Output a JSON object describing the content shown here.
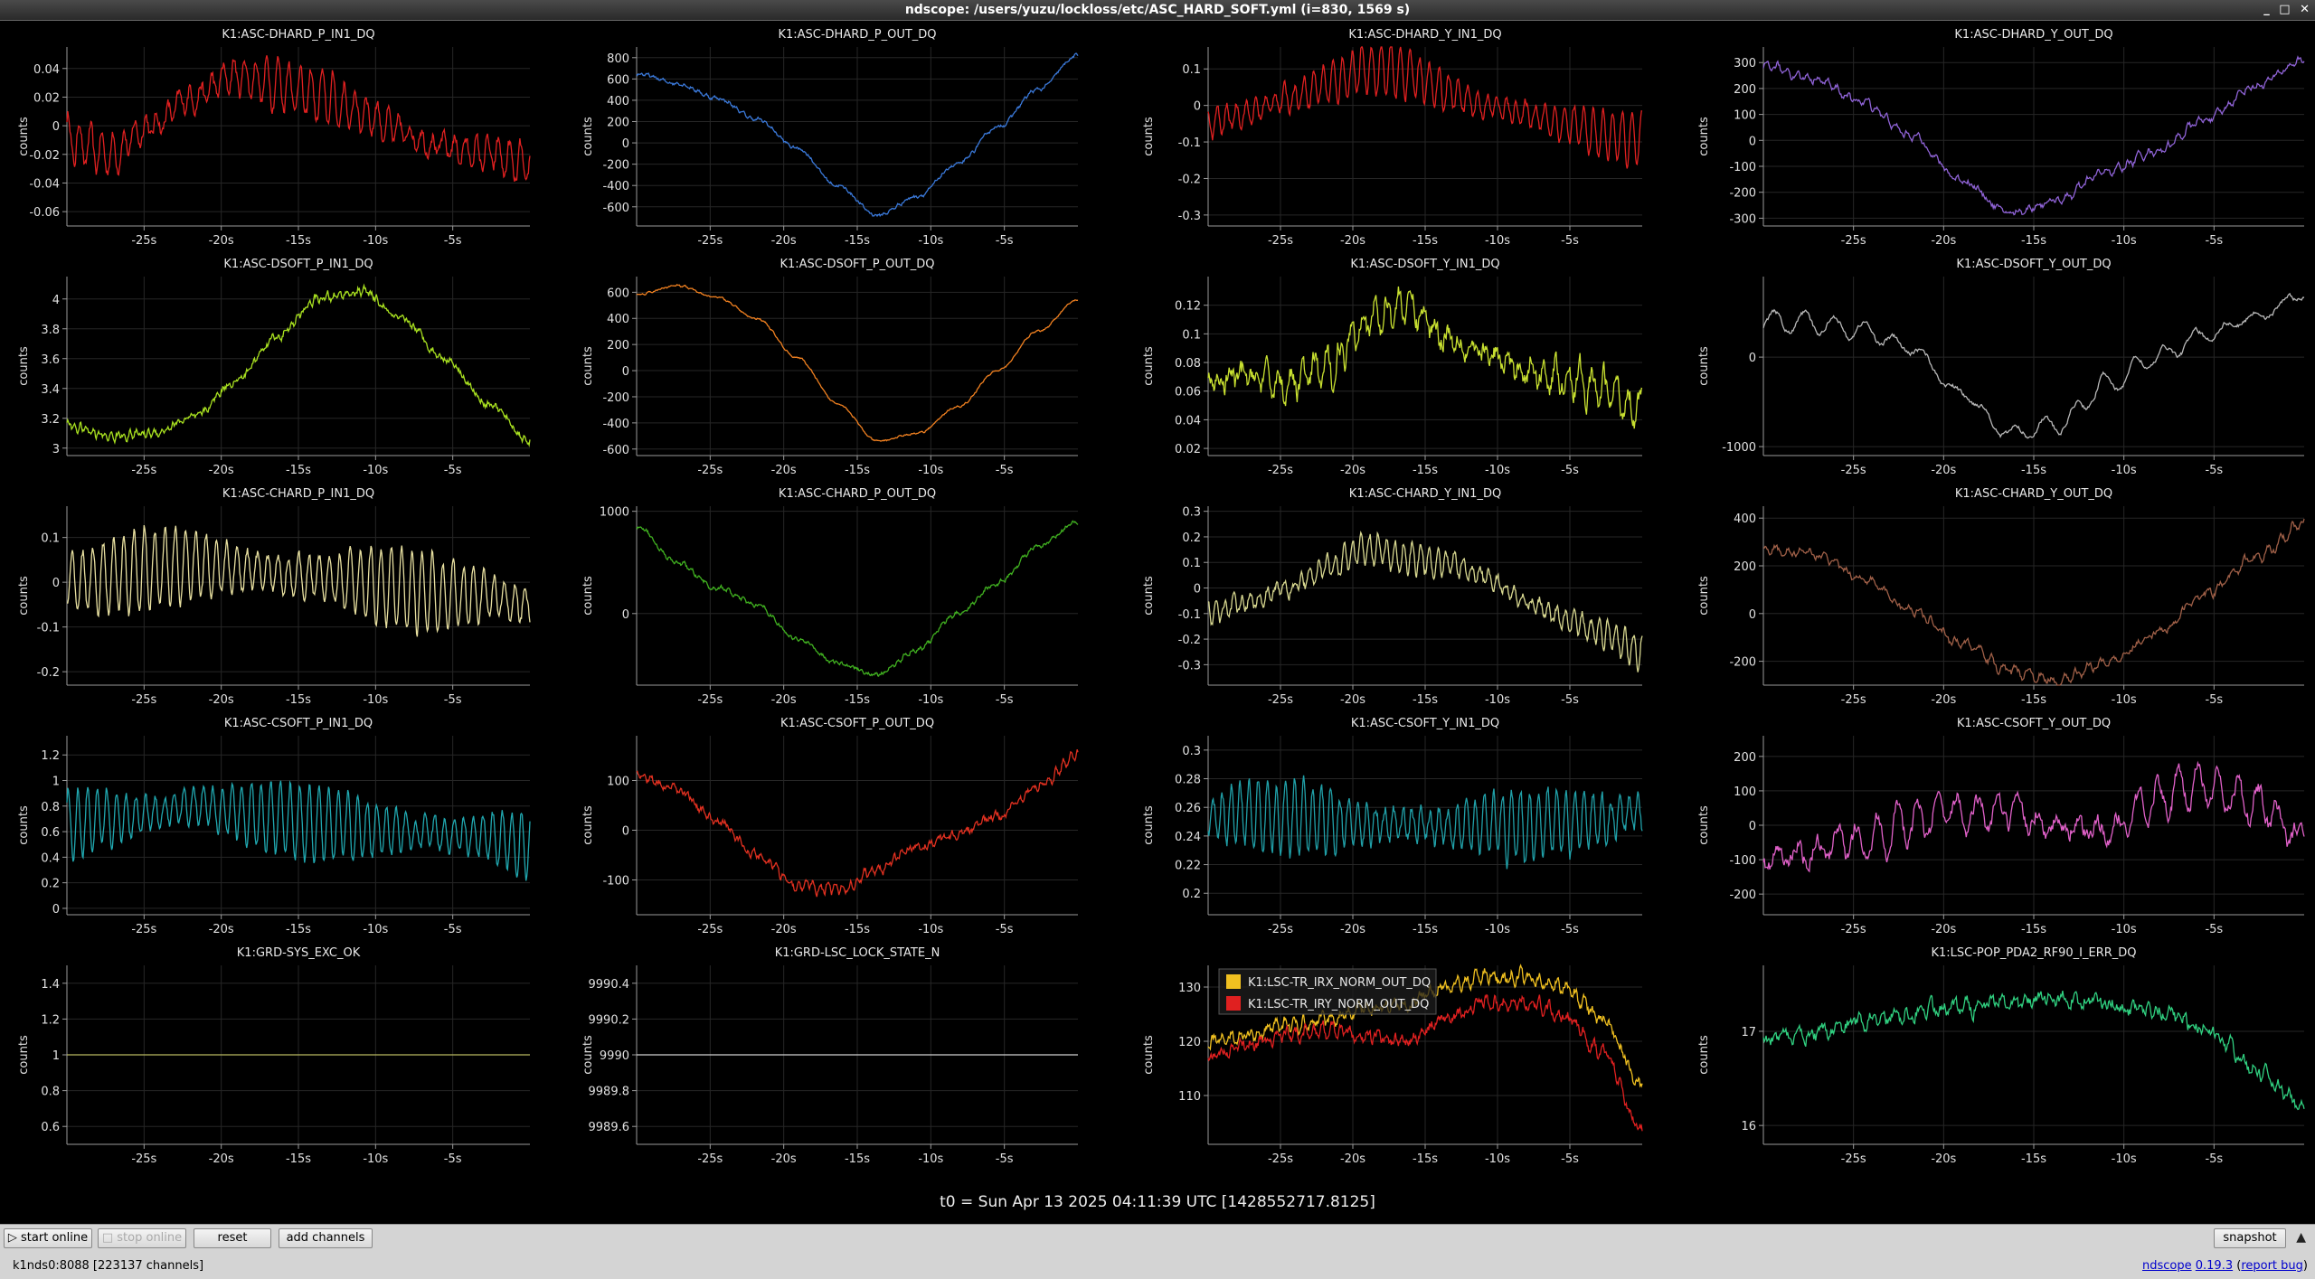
{
  "window": {
    "title": "ndscope: /users/yuzu/lockloss/etc/ASC_HARD_SOFT.yml (i=830, 1569 s)",
    "buttons": [
      "_",
      "□",
      "✕"
    ]
  },
  "x_ticks": [
    "-25s",
    "-20s",
    "-15s",
    "-10s",
    "-5s"
  ],
  "x_tick_values": [
    -25,
    -20,
    -15,
    -10,
    -5
  ],
  "x_range": [
    -30,
    0
  ],
  "colors": {
    "red": "#e02020",
    "blue": "#3a78d8",
    "purple": "#8f63d6",
    "lime": "#a8e020",
    "orange": "#f08020",
    "yellow_lime": "#c8e030",
    "gray": "#b8b8b8",
    "khaki": "#e8e0a0",
    "green": "#40b020",
    "khaki2": "#d8d890",
    "brown": "#a06048",
    "cyan": "#20a8b0",
    "red2": "#e03020",
    "teal": "#20a0a8",
    "pink": "#e060c8",
    "olive": "#b8b860",
    "white": "#d0d0d0",
    "yellow": "#f0c020",
    "mint": "#30d080"
  },
  "plots": [
    {
      "title": "K1:ASC-DHARD_P_IN1_DQ",
      "ylabel": "counts",
      "yticks": [
        "0.04",
        "0.02",
        "0",
        "-0.02",
        "-0.04",
        "-0.06"
      ],
      "ytick_values": [
        0.04,
        0.02,
        0,
        -0.02,
        -0.04,
        -0.06
      ],
      "ylim": [
        -0.07,
        0.055
      ],
      "series": [
        {
          "color": "red",
          "trend": [
            -0.01,
            -0.02,
            0.0,
            0.02,
            0.035,
            0.03,
            0.02,
            0.01,
            -0.005,
            -0.015,
            -0.02,
            -0.03
          ],
          "osc": 0.018,
          "freq": 1.4,
          "noise": 0.004
        }
      ]
    },
    {
      "title": "K1:ASC-DHARD_P_OUT_DQ",
      "ylabel": "counts",
      "yticks": [
        "800",
        "600",
        "400",
        "200",
        "0",
        "-200",
        "-400",
        "-600"
      ],
      "ytick_values": [
        800,
        600,
        400,
        200,
        0,
        -200,
        -400,
        -600
      ],
      "ylim": [
        -780,
        900
      ],
      "series": [
        {
          "color": "blue",
          "trend": [
            650,
            560,
            420,
            220,
            -50,
            -400,
            -680,
            -500,
            -200,
            150,
            500,
            820
          ],
          "osc": 10,
          "freq": 2,
          "noise": 12
        }
      ]
    },
    {
      "title": "K1:ASC-DHARD_Y_IN1_DQ",
      "ylabel": "counts",
      "yticks": [
        "0.1",
        "0",
        "-0.1",
        "-0.2",
        "-0.3"
      ],
      "ytick_values": [
        0.1,
        0,
        -0.1,
        -0.2,
        -0.3
      ],
      "ylim": [
        -0.33,
        0.16
      ],
      "series": [
        {
          "color": "red",
          "trend": [
            -0.05,
            -0.02,
            0.02,
            0.06,
            0.1,
            0.09,
            0.04,
            0.0,
            -0.02,
            -0.05,
            -0.08,
            -0.1
          ],
          "osc": 0.07,
          "freq": 1.5,
          "noise": 0.01
        }
      ]
    },
    {
      "title": "K1:ASC-DHARD_Y_OUT_DQ",
      "ylabel": "counts",
      "yticks": [
        "300",
        "200",
        "100",
        "0",
        "-100",
        "-200",
        "-300"
      ],
      "ytick_values": [
        300,
        200,
        100,
        0,
        -100,
        -200,
        -300
      ],
      "ylim": [
        -330,
        360
      ],
      "series": [
        {
          "color": "purple",
          "trend": [
            290,
            240,
            150,
            20,
            -150,
            -280,
            -230,
            -120,
            -40,
            80,
            210,
            310
          ],
          "osc": 15,
          "freq": 1.8,
          "noise": 10
        }
      ]
    },
    {
      "title": "K1:ASC-DSOFT_P_IN1_DQ",
      "ylabel": "counts",
      "yticks": [
        "4",
        "3.8",
        "3.6",
        "3.4",
        "3.2",
        "3"
      ],
      "ytick_values": [
        4,
        3.8,
        3.6,
        3.4,
        3.2,
        3
      ],
      "ylim": [
        2.95,
        4.15
      ],
      "series": [
        {
          "color": "lime",
          "trend": [
            3.15,
            3.08,
            3.1,
            3.2,
            3.45,
            3.75,
            4.0,
            4.05,
            3.85,
            3.6,
            3.3,
            3.05
          ],
          "osc": 0.02,
          "freq": 2.5,
          "noise": 0.02
        }
      ]
    },
    {
      "title": "K1:ASC-DSOFT_P_OUT_DQ",
      "ylabel": "counts",
      "yticks": [
        "600",
        "400",
        "200",
        "0",
        "-200",
        "-400",
        "-600"
      ],
      "ytick_values": [
        600,
        400,
        200,
        0,
        -200,
        -400,
        -600
      ],
      "ylim": [
        -650,
        720
      ],
      "series": [
        {
          "color": "orange",
          "trend": [
            580,
            650,
            560,
            400,
            100,
            -250,
            -540,
            -480,
            -280,
            0,
            300,
            540
          ],
          "osc": 5,
          "freq": 2,
          "noise": 5
        }
      ]
    },
    {
      "title": "K1:ASC-DSOFT_Y_IN1_DQ",
      "ylabel": "counts",
      "yticks": [
        "0.12",
        "0.1",
        "0.08",
        "0.06",
        "0.04",
        "0.02"
      ],
      "ytick_values": [
        0.12,
        0.1,
        0.08,
        0.06,
        0.04,
        0.02
      ],
      "ylim": [
        0.015,
        0.14
      ],
      "series": [
        {
          "color": "yellow_lime",
          "trend": [
            0.065,
            0.07,
            0.065,
            0.075,
            0.11,
            0.12,
            0.1,
            0.085,
            0.075,
            0.07,
            0.06,
            0.05
          ],
          "osc": 0.012,
          "freq": 1.2,
          "noise": 0.006
        }
      ]
    },
    {
      "title": "K1:ASC-DSOFT_Y_OUT_DQ",
      "ylabel": "counts",
      "yticks": [
        "0",
        "-1000"
      ],
      "ytick_values": [
        0,
        -1000
      ],
      "ylim": [
        -1100,
        900
      ],
      "series": [
        {
          "color": "gray",
          "trend": [
            400,
            380,
            300,
            100,
            -400,
            -850,
            -750,
            -300,
            0,
            250,
            450,
            700
          ],
          "osc": 120,
          "freq": 0.6,
          "noise": 20
        }
      ]
    },
    {
      "title": "K1:ASC-CHARD_P_IN1_DQ",
      "ylabel": "counts",
      "yticks": [
        "0.1",
        "0",
        "-0.1",
        "-0.2"
      ],
      "ytick_values": [
        0.1,
        0,
        -0.1,
        -0.2
      ],
      "ylim": [
        -0.23,
        0.17
      ],
      "series": [
        {
          "color": "khaki",
          "trend": [
            0.0,
            0.01,
            0.03,
            0.04,
            0.03,
            0.02,
            0.01,
            0.0,
            -0.02,
            -0.03,
            -0.03,
            -0.05
          ],
          "osc": 0.09,
          "freq": 1.5,
          "noise": 0.01
        }
      ]
    },
    {
      "title": "K1:ASC-CHARD_P_OUT_DQ",
      "ylabel": "counts",
      "yticks": [
        "1000",
        "0"
      ],
      "ytick_values": [
        1000,
        0
      ],
      "ylim": [
        -700,
        1050
      ],
      "series": [
        {
          "color": "green",
          "trend": [
            850,
            500,
            250,
            80,
            -250,
            -480,
            -600,
            -350,
            0,
            300,
            650,
            900
          ],
          "osc": 15,
          "freq": 2,
          "noise": 15
        }
      ]
    },
    {
      "title": "K1:ASC-CHARD_Y_IN1_DQ",
      "ylabel": "counts",
      "yticks": [
        "0.3",
        "0.2",
        "0.1",
        "0",
        "-0.1",
        "-0.2",
        "-0.3"
      ],
      "ytick_values": [
        0.3,
        0.2,
        0.1,
        0,
        -0.1,
        -0.2,
        -0.3
      ],
      "ylim": [
        -0.38,
        0.32
      ],
      "series": [
        {
          "color": "khaki2",
          "trend": [
            -0.1,
            -0.05,
            0.0,
            0.08,
            0.15,
            0.12,
            0.1,
            0.05,
            -0.05,
            -0.12,
            -0.18,
            -0.25
          ],
          "osc": 0.06,
          "freq": 1.7,
          "noise": 0.015
        }
      ]
    },
    {
      "title": "K1:ASC-CHARD_Y_OUT_DQ",
      "ylabel": "counts",
      "yticks": [
        "400",
        "200",
        "0",
        "-200"
      ],
      "ytick_values": [
        400,
        200,
        0,
        -200
      ],
      "ylim": [
        -300,
        450
      ],
      "series": [
        {
          "color": "brown",
          "trend": [
            270,
            250,
            150,
            20,
            -120,
            -240,
            -280,
            -200,
            -80,
            80,
            230,
            380
          ],
          "osc": 20,
          "freq": 1.5,
          "noise": 12
        }
      ]
    },
    {
      "title": "K1:ASC-CSOFT_P_IN1_DQ",
      "ylabel": "counts",
      "yticks": [
        "1.2",
        "1",
        "0.8",
        "0.6",
        "0.4",
        "0.2",
        "0"
      ],
      "ytick_values": [
        1.2,
        1,
        0.8,
        0.6,
        0.4,
        0.2,
        0
      ],
      "ylim": [
        -0.05,
        1.35
      ],
      "series": [
        {
          "color": "cyan",
          "trend": [
            0.65,
            0.7,
            0.75,
            0.8,
            0.75,
            0.7,
            0.65,
            0.62,
            0.6,
            0.58,
            0.55,
            0.5
          ],
          "osc": 0.3,
          "freq": 1.6,
          "noise": 0.03
        }
      ]
    },
    {
      "title": "K1:ASC-CSOFT_P_OUT_DQ",
      "ylabel": "counts",
      "yticks": [
        "100",
        "0",
        "-100"
      ],
      "ytick_values": [
        100,
        0,
        -100
      ],
      "ylim": [
        -170,
        190
      ],
      "series": [
        {
          "color": "red2",
          "trend": [
            110,
            80,
            20,
            -50,
            -110,
            -120,
            -80,
            -30,
            -10,
            30,
            90,
            150
          ],
          "osc": 8,
          "freq": 2,
          "noise": 6
        }
      ]
    },
    {
      "title": "K1:ASC-CSOFT_Y_IN1_DQ",
      "ylabel": "counts",
      "yticks": [
        "0.3",
        "0.28",
        "0.26",
        "0.24",
        "0.22",
        "0.2"
      ],
      "ytick_values": [
        0.3,
        0.28,
        0.26,
        0.24,
        0.22,
        0.2
      ],
      "ylim": [
        0.185,
        0.31
      ],
      "series": [
        {
          "color": "teal",
          "trend": [
            0.255,
            0.255,
            0.253,
            0.25,
            0.248,
            0.248,
            0.247,
            0.247,
            0.248,
            0.25,
            0.252,
            0.255
          ],
          "osc": 0.025,
          "freq": 1.6,
          "noise": 0.004
        }
      ]
    },
    {
      "title": "K1:ASC-CSOFT_Y_OUT_DQ",
      "ylabel": "counts",
      "yticks": [
        "200",
        "100",
        "0",
        "-100",
        "-200"
      ],
      "ytick_values": [
        200,
        100,
        0,
        -100,
        -200
      ],
      "ylim": [
        -260,
        260
      ],
      "series": [
        {
          "color": "pink",
          "trend": [
            -100,
            -80,
            -40,
            0,
            40,
            30,
            0,
            -20,
            80,
            120,
            60,
            -40
          ],
          "osc": 60,
          "freq": 0.9,
          "noise": 20
        }
      ]
    },
    {
      "title": "K1:GRD-SYS_EXC_OK",
      "ylabel": "counts",
      "yticks": [
        "1.4",
        "1.2",
        "1",
        "0.8",
        "0.6"
      ],
      "ytick_values": [
        1.4,
        1.2,
        1,
        0.8,
        0.6
      ],
      "ylim": [
        0.5,
        1.5
      ],
      "series": [
        {
          "color": "olive",
          "trend": [
            1,
            1
          ],
          "osc": 0,
          "freq": 0,
          "noise": 0
        }
      ]
    },
    {
      "title": "K1:GRD-LSC_LOCK_STATE_N",
      "ylabel": "counts",
      "yticks": [
        "9990.4",
        "9990.2",
        "9990",
        "9989.8",
        "9989.6"
      ],
      "ytick_values": [
        9990.4,
        9990.2,
        9990,
        9989.8,
        9989.6
      ],
      "ylim": [
        9989.5,
        9990.5
      ],
      "series": [
        {
          "color": "white",
          "trend": [
            9990,
            9990
          ],
          "osc": 0,
          "freq": 0,
          "noise": 0
        }
      ]
    },
    {
      "title": "",
      "ylabel": "counts",
      "yticks": [
        "130",
        "120",
        "110"
      ],
      "ytick_values": [
        130,
        120,
        110
      ],
      "ylim": [
        101,
        134
      ],
      "legend": [
        {
          "label": "K1:LSC-TR_IRX_NORM_OUT_DQ",
          "color": "yellow"
        },
        {
          "label": "K1:LSC-TR_IRY_NORM_OUT_DQ",
          "color": "red"
        }
      ],
      "series": [
        {
          "color": "yellow",
          "trend": [
            120,
            121,
            123,
            124,
            126,
            127,
            130,
            132,
            132,
            130,
            124,
            112
          ],
          "osc": 1,
          "freq": 1.6,
          "noise": 0.8
        },
        {
          "color": "red",
          "trend": [
            117,
            119,
            121,
            122,
            121,
            120,
            124,
            127,
            127,
            125,
            118,
            104
          ],
          "osc": 1,
          "freq": 1.6,
          "noise": 0.8
        }
      ]
    },
    {
      "title": "K1:LSC-POP_PDA2_RF90_I_ERR_DQ",
      "ylabel": "counts",
      "yticks": [
        "17",
        "16"
      ],
      "ytick_values": [
        17,
        16
      ],
      "ylim": [
        15.8,
        17.7
      ],
      "series": [
        {
          "color": "mint",
          "trend": [
            16.9,
            16.95,
            17.1,
            17.2,
            17.25,
            17.3,
            17.35,
            17.3,
            17.2,
            17.05,
            16.6,
            16.2
          ],
          "osc": 0.06,
          "freq": 1.5,
          "noise": 0.06
        }
      ]
    }
  ],
  "t0": "t0 = Sun Apr 13 2025 04:11:39 UTC [1428552717.8125]",
  "controls": {
    "start_online": "start online",
    "stop_online": "stop online",
    "reset": "reset",
    "add_channels": "add channels",
    "snapshot": "snapshot"
  },
  "status": {
    "server": "k1nds0:8088  [223137 channels]",
    "app": "ndscope",
    "version": "0.19.3",
    "report": "report bug"
  }
}
